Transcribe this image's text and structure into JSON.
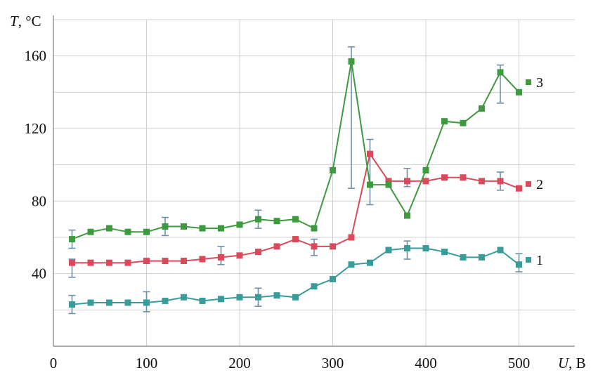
{
  "chart_data": {
    "type": "line",
    "xlabel_var": "U",
    "xlabel_unit": ", В",
    "ylabel_var": "T",
    "ylabel_unit": ", °C",
    "xlim": [
      0,
      560
    ],
    "ylim": [
      0,
      180
    ],
    "xticks": [
      0,
      100,
      200,
      300,
      400,
      500
    ],
    "yticks": [
      40,
      80,
      120,
      160
    ],
    "grid": true,
    "legend_placement": "right, inline labels",
    "series": [
      {
        "name": "1",
        "color": "#3a9b9b",
        "x": [
          20,
          40,
          60,
          80,
          100,
          120,
          140,
          160,
          180,
          200,
          220,
          240,
          260,
          280,
          300,
          320,
          340,
          360,
          380,
          400,
          420,
          440,
          460,
          480,
          500
        ],
        "y": [
          23,
          24,
          24,
          24,
          24,
          25,
          27,
          25,
          26,
          27,
          27,
          28,
          27,
          33,
          37,
          45,
          46,
          53,
          54,
          54,
          52,
          49,
          49,
          53,
          45
        ],
        "err": [
          {
            "x": 20,
            "lo": 18,
            "hi": 28
          },
          {
            "x": 100,
            "lo": 19,
            "hi": 30
          },
          {
            "x": 220,
            "lo": 22,
            "hi": 32
          },
          {
            "x": 380,
            "lo": 48,
            "hi": 58
          },
          {
            "x": 500,
            "lo": 41,
            "hi": 51
          }
        ]
      },
      {
        "name": "2",
        "color": "#d94a5a",
        "x": [
          20,
          40,
          60,
          80,
          100,
          120,
          140,
          160,
          180,
          200,
          220,
          240,
          260,
          280,
          300,
          320,
          340,
          360,
          380,
          400,
          420,
          440,
          460,
          480,
          500
        ],
        "y": [
          46,
          46,
          46,
          46,
          47,
          47,
          47,
          48,
          49,
          50,
          52,
          55,
          59,
          55,
          55,
          60,
          106,
          91,
          91,
          91,
          93,
          93,
          91,
          91,
          87
        ],
        "err": [
          {
            "x": 20,
            "lo": 38,
            "hi": 48
          },
          {
            "x": 180,
            "lo": 45,
            "hi": 55
          },
          {
            "x": 280,
            "lo": 50,
            "hi": 59
          },
          {
            "x": 340,
            "lo": 78,
            "hi": 114
          },
          {
            "x": 480,
            "lo": 86,
            "hi": 96
          }
        ]
      },
      {
        "name": "3",
        "color": "#3e9a3e",
        "x": [
          20,
          40,
          60,
          80,
          100,
          120,
          140,
          160,
          180,
          200,
          220,
          240,
          260,
          280,
          300,
          320,
          340,
          360,
          380,
          400,
          420,
          440,
          460,
          480,
          500
        ],
        "y": [
          59,
          63,
          65,
          63,
          63,
          66,
          66,
          65,
          65,
          67,
          70,
          69,
          70,
          65,
          97,
          157,
          89,
          89,
          72,
          97,
          124,
          123,
          131,
          151,
          140
        ],
        "err": [
          {
            "x": 20,
            "lo": 54,
            "hi": 64
          },
          {
            "x": 120,
            "lo": 61,
            "hi": 71
          },
          {
            "x": 220,
            "lo": 65,
            "hi": 75
          },
          {
            "x": 320,
            "lo": 87,
            "hi": 165
          },
          {
            "x": 380,
            "lo": 88,
            "hi": 98
          },
          {
            "x": 480,
            "lo": 134,
            "hi": 155
          }
        ]
      }
    ]
  }
}
